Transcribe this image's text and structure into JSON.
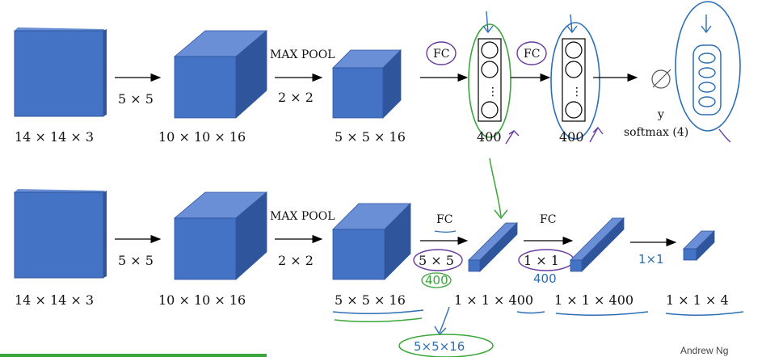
{
  "top_row": {
    "input_dims": "14 × 14 × 3",
    "conv_filter": "5 × 5",
    "conv_out_dims": "10 × 10 × 16",
    "pool_label": "MAX POOL",
    "pool_size": "2 × 2",
    "pool_out_dims": "5 × 5 × 16",
    "fc1_label": "FC",
    "fc1_units": "400",
    "fc2_label": "FC",
    "fc2_units": "400",
    "output_var": "y",
    "output_label": "softmax (4)"
  },
  "bottom_row": {
    "input_dims": "14 × 14 × 3",
    "conv_filter": "5 × 5",
    "conv_out_dims": "10 × 10 × 16",
    "pool_label": "MAX POOL",
    "pool_size": "2 × 2",
    "pool_out_dims": "5 × 5 × 16",
    "fc1_label": "FC",
    "fc1_filter": "5 × 5",
    "fc1_filter_note": "400",
    "fc1_out_dims": "1 × 1 × 400",
    "fc2_label": "FC",
    "fc2_filter": "1 × 1",
    "fc2_filter_note": "400",
    "fc2_out_dims": "1 × 1 × 400",
    "conv3_filter": "1×1",
    "final_dims": "1 × 1 × 4",
    "annotation_filter": "5×5×16"
  },
  "watermark": "Andrew Ng",
  "colors": {
    "block_front": "#4472c4",
    "block_top": "#6a8fd6",
    "block_side": "#2f559c",
    "pen_green": "#3aa63a",
    "pen_blue": "#2c6fb5",
    "pen_purple": "#6a3ba0"
  }
}
